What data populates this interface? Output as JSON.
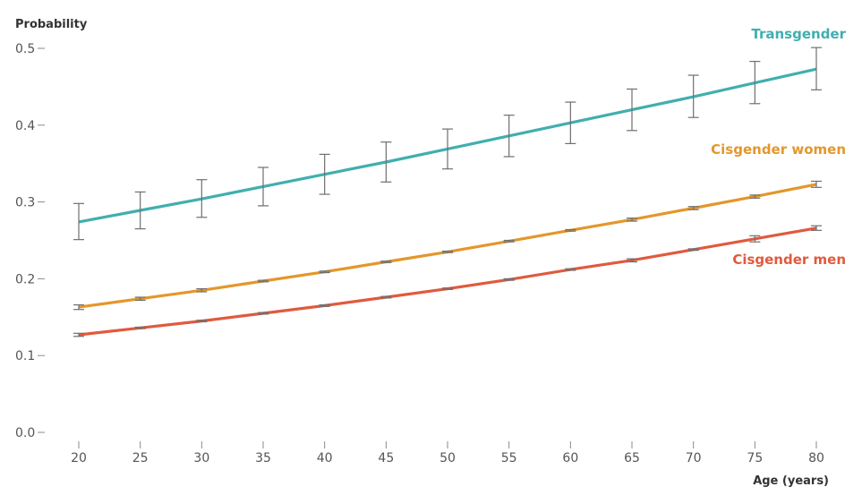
{
  "chart_data": {
    "type": "line",
    "title": "",
    "ylabel": "Probability",
    "xlabel": "Age (years)",
    "x": [
      20,
      25,
      30,
      35,
      40,
      45,
      50,
      55,
      60,
      65,
      70,
      75,
      80
    ],
    "xlim": [
      20,
      80
    ],
    "ylim": [
      0,
      0.5
    ],
    "yticks": [
      0.0,
      0.1,
      0.2,
      0.3,
      0.4,
      0.5
    ],
    "ytick_labels": [
      "0.0",
      "0.1",
      "0.2",
      "0.3",
      "0.4",
      "0.5"
    ],
    "xtick_labels": [
      "20",
      "25",
      "30",
      "35",
      "40",
      "45",
      "50",
      "55",
      "60",
      "65",
      "70",
      "75",
      "80"
    ],
    "grid": false,
    "series": [
      {
        "name": "Transgender",
        "color": "#41aeb0",
        "values": [
          0.274,
          0.289,
          0.304,
          0.32,
          0.336,
          0.352,
          0.369,
          0.386,
          0.403,
          0.42,
          0.437,
          0.455,
          0.473
        ],
        "err_low": [
          0.251,
          0.265,
          0.28,
          0.295,
          0.31,
          0.326,
          0.343,
          0.359,
          0.376,
          0.393,
          0.41,
          0.428,
          0.446
        ],
        "err_high": [
          0.298,
          0.313,
          0.329,
          0.345,
          0.362,
          0.378,
          0.395,
          0.413,
          0.43,
          0.447,
          0.465,
          0.483,
          0.501
        ]
      },
      {
        "name": "Cisgender women",
        "color": "#e3972b",
        "values": [
          0.163,
          0.174,
          0.185,
          0.197,
          0.209,
          0.222,
          0.235,
          0.249,
          0.263,
          0.277,
          0.292,
          0.307,
          0.323
        ],
        "err_low": [
          0.16,
          0.172,
          0.183,
          0.196,
          0.208,
          0.221,
          0.234,
          0.248,
          0.262,
          0.275,
          0.29,
          0.305,
          0.319
        ],
        "err_high": [
          0.166,
          0.176,
          0.187,
          0.198,
          0.21,
          0.223,
          0.236,
          0.25,
          0.264,
          0.279,
          0.294,
          0.309,
          0.327
        ]
      },
      {
        "name": "Cisgender men",
        "color": "#e05a3e",
        "values": [
          0.127,
          0.136,
          0.145,
          0.155,
          0.165,
          0.176,
          0.187,
          0.199,
          0.212,
          0.224,
          0.238,
          0.252,
          0.266
        ],
        "err_low": [
          0.125,
          0.135,
          0.144,
          0.154,
          0.164,
          0.175,
          0.186,
          0.198,
          0.211,
          0.222,
          0.237,
          0.248,
          0.263
        ],
        "err_high": [
          0.129,
          0.137,
          0.146,
          0.156,
          0.166,
          0.177,
          0.188,
          0.2,
          0.213,
          0.226,
          0.239,
          0.256,
          0.269
        ]
      }
    ]
  }
}
